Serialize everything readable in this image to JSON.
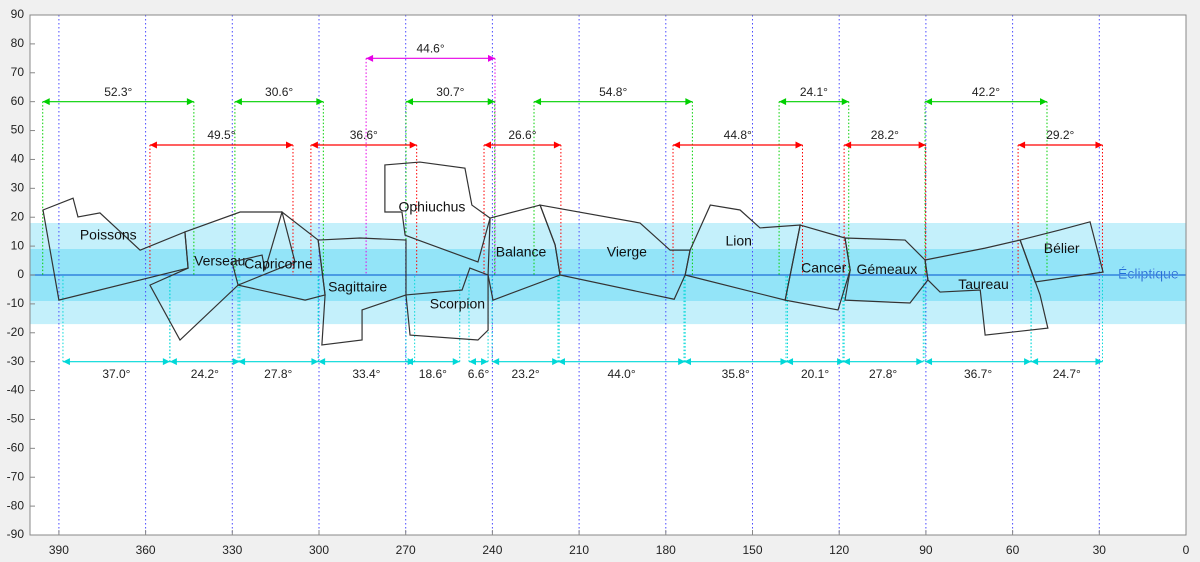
{
  "chart_data": {
    "type": "constellation-map",
    "xlim": [
      400,
      0
    ],
    "xticks": [
      390,
      360,
      330,
      300,
      270,
      240,
      210,
      180,
      150,
      120,
      90,
      60,
      30,
      0
    ],
    "ylim": [
      -90,
      90
    ],
    "yticks": [
      90,
      80,
      70,
      60,
      50,
      40,
      30,
      20,
      10,
      0,
      -10,
      -20,
      -30,
      -40,
      -50,
      -60,
      -70,
      -80,
      -90
    ],
    "grid": true,
    "grid_color": "#4a4aff",
    "bands": [
      {
        "ylim": [
          -17,
          18
        ],
        "color": "#c4f0fb"
      },
      {
        "ylim": [
          -9,
          9
        ],
        "color": "#93e4f8"
      }
    ],
    "ecliptic": {
      "y": 0,
      "label": "Écliptique",
      "color": "#1f6fd8"
    },
    "constellations": [
      {
        "name": "Poissons",
        "x": [
          395.5,
          385.1,
          383.4,
          375.8,
          361.9,
          346.4,
          345.3,
          390.0
        ],
        "y": [
          22.5,
          26.6,
          20.1,
          21.5,
          8.6,
          14.9,
          2.4,
          -8.7
        ]
      },
      {
        "name": "Verseau",
        "x": [
          346.4,
          327.3,
          312.8,
          308.3,
          328.0,
          348.1,
          358.5,
          345.3
        ],
        "y": [
          14.9,
          21.8,
          21.8,
          4.5,
          -3.5,
          -22.5,
          -3.5,
          2.4
        ]
      },
      {
        "name": "Capricorne",
        "x": [
          330.1,
          319.7,
          318.7,
          312.8,
          300.3,
          297.9,
          304.8,
          328.0
        ],
        "y": [
          4.5,
          6.9,
          1.7,
          21.8,
          12.1,
          -6.9,
          -8.7,
          -3.5
        ]
      },
      {
        "name": "Sagittaire",
        "x": [
          300.3,
          285.8,
          269.9,
          269.9,
          285.1,
          285.1,
          299.0,
          297.9
        ],
        "y": [
          12.1,
          12.8,
          12.1,
          -6.9,
          -12.1,
          -22.5,
          -24.2,
          -6.9
        ]
      },
      {
        "name": "Ophiuchus",
        "x": [
          277.2,
          265.1,
          249.5,
          247.1,
          240.8,
          245.0,
          265.7,
          270.2,
          271.3,
          277.2
        ],
        "y": [
          38.1,
          39.1,
          37.0,
          24.2,
          19.7,
          4.5,
          12.1,
          13.8,
          21.8,
          21.8
        ]
      },
      {
        "name": "Scorpion",
        "x": [
          269.9,
          250.5,
          247.8,
          241.5,
          241.5,
          245.0,
          268.5
        ],
        "y": [
          -6.9,
          -5.2,
          2.4,
          0,
          -19.1,
          -22.5,
          -20.8
        ]
      },
      {
        "name": "Balance",
        "x": [
          241.5,
          240.8,
          223.5,
          218.3,
          216.6,
          239.8
        ],
        "y": [
          0,
          19.7,
          24.2,
          10.4,
          0,
          -8.7
        ]
      },
      {
        "name": "Vierge",
        "x": [
          223.5,
          188.9,
          178.5,
          171.6,
          173.3,
          177.1,
          216.6,
          218.3
        ],
        "y": [
          24.2,
          18.0,
          8.6,
          8.6,
          0,
          -8.4,
          0,
          10.4
        ]
      },
      {
        "name": "Lion",
        "x": [
          171.6,
          164.6,
          154.3,
          147.4,
          133.5,
          138.7,
          173.3
        ],
        "y": [
          8.6,
          24.2,
          22.5,
          16.3,
          17.3,
          -8.7,
          0
        ]
      },
      {
        "name": "Cancer",
        "x": [
          133.5,
          118.0,
          116.2,
          120.4,
          138.7
        ],
        "y": [
          17.3,
          12.8,
          1.7,
          -12.1,
          -8.7
        ]
      },
      {
        "name": "Gémeaux",
        "x": [
          118.0,
          97.2,
          90.3,
          89.3,
          95.5,
          118.0,
          116.2
        ],
        "y": [
          12.8,
          12.1,
          5.2,
          -1.7,
          -9.7,
          -8.7,
          1.7
        ]
      },
      {
        "name": "Taureau",
        "x": [
          90.3,
          69.5,
          57.4,
          50.5,
          47.8,
          69.5,
          71.2,
          85.1,
          89.3
        ],
        "y": [
          5.2,
          9.3,
          12.1,
          -6.9,
          -18.4,
          -20.8,
          -5.2,
          -5.9,
          -1.7
        ]
      },
      {
        "name": "Bélier",
        "x": [
          57.4,
          43.6,
          33.2,
          28.7,
          52.2
        ],
        "y": [
          12.1,
          15.6,
          18.4,
          1.0,
          -2.4
        ]
      }
    ],
    "spans": [
      {
        "color": "#e600e6",
        "y": 75,
        "starts": [
          283.7
        ],
        "values": [
          44.6
        ],
        "value_labels": [
          "44.6°"
        ]
      },
      {
        "color": "#00d000",
        "y": 60,
        "starts": [
          395.6,
          329.1,
          269.9,
          225.6,
          140.8,
          90.3
        ],
        "values": [
          52.3,
          30.6,
          30.7,
          54.8,
          24.1,
          42.2
        ],
        "value_labels": [
          "52.3°",
          "30.6°",
          "30.7°",
          "54.8°",
          "24.1°",
          "42.2°"
        ]
      },
      {
        "color": "#ff0000",
        "y": 45,
        "starts": [
          358.5,
          302.8,
          242.9,
          177.5,
          118.3,
          58.1
        ],
        "values": [
          49.5,
          36.6,
          26.6,
          44.8,
          28.2,
          29.2
        ],
        "value_labels": [
          "49.5°",
          "36.6°",
          "26.6°",
          "44.8°",
          "28.2°",
          "29.2°"
        ]
      },
      {
        "color": "#00d8d8",
        "y": -30,
        "starts": [
          388.6,
          351.6,
          328.0,
          300.3,
          269.9,
          248.1,
          240.1,
          217.3,
          173.7,
          138.4,
          118.7,
          90.3,
          53.6
        ],
        "values": [
          37.0,
          24.2,
          27.8,
          33.4,
          18.6,
          6.6,
          23.2,
          44.0,
          35.8,
          20.1,
          27.8,
          36.7,
          24.7
        ],
        "value_labels": [
          "37.0°",
          "24.2°",
          "27.8°",
          "33.4°",
          "18.6°",
          "6.6°",
          "23.2°",
          "44.0°",
          "35.8°",
          "20.1°",
          "27.8°",
          "36.7°",
          "24.7°"
        ]
      }
    ]
  }
}
